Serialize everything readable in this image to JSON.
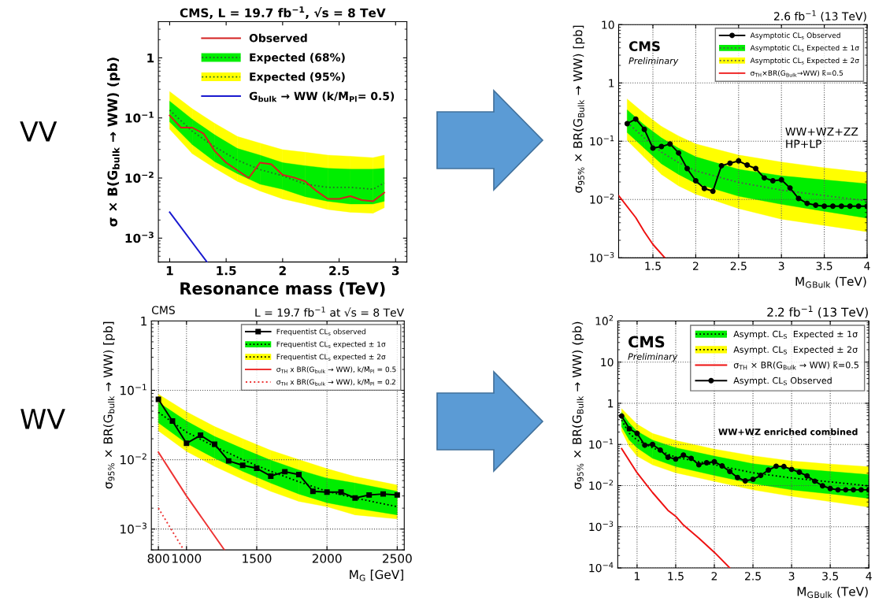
{
  "chart_data": [
    {
      "type": "line",
      "title": "CMS, L = 19.7 fb$^{−1}$, √s = 8 TeV",
      "xlabel": "Resonance mass (TeV)",
      "ylabel": "σ × B(G$_{bulk}$ → WW) (pb)",
      "log": true,
      "grid": false,
      "legend": "top right",
      "xlim": [
        0.9,
        3.1
      ],
      "ylim": [
        0.0004,
        4
      ],
      "xticks": [
        1,
        1.5,
        2,
        2.5,
        3
      ],
      "yticks": [
        {
          "value": 0.001,
          "label": "10$^{−3}$"
        },
        {
          "value": 0.01,
          "label": "10$^{−2}$"
        },
        {
          "value": 0.1,
          "label": "10$^{−1}$"
        },
        1
      ],
      "series": [
        {
          "name": "Observed",
          "color": "#d42020",
          "x": [
            1.0,
            1.1,
            1.2,
            1.3,
            1.4,
            1.5,
            1.6,
            1.7,
            1.8,
            1.9,
            2.0,
            2.1,
            2.2,
            2.3,
            2.4,
            2.5,
            2.6,
            2.7,
            2.8,
            2.9
          ],
          "values": [
            0.11,
            0.069,
            0.069,
            0.055,
            0.028,
            0.018,
            0.0134,
            0.01,
            0.018,
            0.017,
            0.0113,
            0.0102,
            0.0088,
            0.0061,
            0.0045,
            0.0045,
            0.005,
            0.0043,
            0.0041,
            0.0057
          ]
        },
        {
          "name": "Expected (68%)",
          "color": "#2a6a2a",
          "colors": [
            "#00ee00",
            "#00ee00",
            "#00ee00",
            "#00ee00",
            "#00ee00",
            "#00ee00",
            "#00ee00",
            "#00ee00",
            "#00ee00",
            "#00ee00",
            "#00ee00"
          ],
          "line_style": "dotted",
          "x": [
            1.0,
            1.2,
            1.4,
            1.6,
            1.8,
            2.0,
            2.2,
            2.4,
            2.6,
            2.8,
            2.9
          ],
          "values": [
            0.135,
            0.06,
            0.033,
            0.0198,
            0.0138,
            0.0109,
            0.0079,
            0.007,
            0.007,
            0.0065,
            0.0083
          ],
          "lower": [
            0.086,
            0.036,
            0.0187,
            0.0118,
            0.0079,
            0.0065,
            0.0049,
            0.0041,
            0.0037,
            0.0037,
            0.0041
          ],
          "upper": [
            0.19,
            0.095,
            0.052,
            0.031,
            0.024,
            0.018,
            0.016,
            0.0145,
            0.014,
            0.014,
            0.0145
          ]
        },
        {
          "name": "Expected (95%)",
          "color": "#2a6a2a",
          "colors": [
            "#ffff00",
            "#ffff00",
            "#ffff00",
            "#ffff00",
            "#ffff00",
            "#ffff00",
            "#ffff00",
            "#ffff00",
            "#ffff00",
            "#ffff00",
            "#ffff00"
          ],
          "line_style": "dotted",
          "x": [
            1.0,
            1.2,
            1.4,
            1.6,
            1.8,
            2.0,
            2.2,
            2.4,
            2.6,
            2.8,
            2.9
          ],
          "values": [
            null,
            null,
            null,
            null,
            null,
            null,
            null,
            null,
            null,
            null,
            null
          ],
          "lower": [
            0.065,
            0.0254,
            0.0146,
            0.0088,
            0.0061,
            0.0045,
            0.0037,
            0.003,
            0.0027,
            0.0026,
            0.0032
          ],
          "upper": [
            0.275,
            0.142,
            0.081,
            0.049,
            0.038,
            0.0296,
            0.0268,
            0.024,
            0.023,
            0.0218,
            0.024
          ]
        },
        {
          "name": "G$_{bulk}$ → WW (k/M̄$_{Pl}$= 0.5)",
          "color": "#1a1ad0",
          "x": [
            1.0,
            1.33
          ],
          "values": [
            0.0027,
            0.0004
          ]
        }
      ]
    },
    {
      "type": "line",
      "title": "2.6 fb$^{−1}$ (13 TeV)",
      "xlabel": "M$_{G}$$_{Bulk}$ (TeV)",
      "ylabel": "σ$_{95%}$ × BR(G$_{Bulk}$ → WW) [pb]",
      "log": true,
      "grid": true,
      "legend": "top right",
      "annotations": [
        "CMS",
        "Preliminary",
        "WW+WZ+ZZ\nHP+LP"
      ],
      "xlim": [
        1.1,
        4.0
      ],
      "ylim": [
        0.001,
        10
      ],
      "xticks": [
        1.5,
        2,
        2.5,
        3,
        3.5,
        4
      ],
      "yticks": [
        {
          "value": 0.001,
          "label": "10$^{−3}$"
        },
        {
          "value": 0.01,
          "label": "10$^{−2}$"
        },
        {
          "value": 0.1,
          "label": "10$^{−1}$"
        },
        1,
        10
      ],
      "series": [
        {
          "name": "Asymptotic CL$_{s}$ Observed",
          "color": "#000000",
          "marker": "circle",
          "x": [
            1.2,
            1.3,
            1.4,
            1.5,
            1.6,
            1.7,
            1.8,
            1.9,
            2.0,
            2.1,
            2.2,
            2.3,
            2.4,
            2.5,
            2.6,
            2.7,
            2.8,
            2.9,
            3.0,
            3.1,
            3.2,
            3.3,
            3.4,
            3.5,
            3.6,
            3.7,
            3.8,
            3.9,
            4.0
          ],
          "values": [
            0.2,
            0.24,
            0.16,
            0.076,
            0.081,
            0.09,
            0.063,
            0.034,
            0.021,
            0.0155,
            0.0139,
            0.038,
            0.042,
            0.046,
            0.039,
            0.034,
            0.0235,
            0.021,
            0.0218,
            0.0158,
            0.0104,
            0.0086,
            0.008,
            0.0077,
            0.0077,
            0.0077,
            0.0077,
            0.0077,
            0.0077
          ]
        },
        {
          "name": "Asymptotic CL$_{s}$ Expected ± 1σ",
          "color": "#555555",
          "colors": [
            "#00ee00",
            "#00ee00",
            "#00ee00",
            "#00ee00",
            "#00ee00",
            "#00ee00",
            "#00ee00",
            "#00ee00",
            "#00ee00"
          ],
          "line_style": "dotted",
          "x": [
            1.2,
            1.4,
            1.6,
            1.8,
            2.0,
            2.5,
            3.0,
            3.5,
            4.0
          ],
          "values": [
            0.21,
            0.114,
            0.065,
            0.043,
            0.031,
            0.0197,
            0.0145,
            0.0117,
            0.0095
          ],
          "lower": [
            0.141,
            0.076,
            0.041,
            0.027,
            0.019,
            0.0114,
            0.0083,
            0.0063,
            0.0048
          ],
          "upper": [
            0.346,
            0.19,
            0.114,
            0.076,
            0.054,
            0.033,
            0.0255,
            0.0218,
            0.0187
          ]
        },
        {
          "name": "Asymptotic CL$_{s}$ Expected ± 2σ",
          "color": "#555555",
          "colors": [
            "#ffff00",
            "#ffff00",
            "#ffff00",
            "#ffff00",
            "#ffff00",
            "#ffff00",
            "#ffff00",
            "#ffff00",
            "#ffff00"
          ],
          "line_style": "dotted",
          "x": [
            1.2,
            1.4,
            1.6,
            1.8,
            2.0,
            2.5,
            3.0,
            3.5,
            4.0
          ],
          "values": [
            null,
            null,
            null,
            null,
            null,
            null,
            null,
            null,
            null
          ],
          "lower": [
            0.103,
            0.053,
            0.027,
            0.0172,
            0.0124,
            0.007,
            0.0046,
            0.0036,
            0.0028
          ],
          "upper": [
            0.53,
            0.3,
            0.18,
            0.123,
            0.09,
            0.058,
            0.044,
            0.035,
            0.029
          ]
        },
        {
          "name": "σ$_{TH}$×BR(G$_{Bulk}$→WW) k̃=0.5",
          "color": "#ee1111",
          "x": [
            1.1,
            1.3,
            1.4,
            1.5,
            1.64
          ],
          "values": [
            0.0117,
            0.0049,
            0.0028,
            0.0017,
            0.001
          ]
        }
      ]
    },
    {
      "type": "line",
      "title": "L = 19.7 fb$^{−1}$ at √s = 8 TeV",
      "xlabel": "M$_{G}$ [GeV]",
      "ylabel": "σ$_{95%}$ × BR(G$_{bulk}$ → WW) [pb]",
      "log": true,
      "grid": true,
      "legend": "top right",
      "annotations": [
        "CMS"
      ],
      "xlim": [
        750,
        2550
      ],
      "ylim": [
        0.0005,
        1
      ],
      "xticks": [
        800,
        1000,
        1500,
        2000,
        2500
      ],
      "yticks": [
        {
          "value": 0.001,
          "label": "10$^{−3}$"
        },
        {
          "value": 0.01,
          "label": "10$^{−2}$"
        },
        {
          "value": 0.1,
          "label": "10$^{−1}$"
        },
        1
      ],
      "series": [
        {
          "name": "Frequentist CL$_{s}$ observed",
          "color": "#000000",
          "marker": "square",
          "x": [
            800,
            900,
            1000,
            1100,
            1200,
            1300,
            1400,
            1500,
            1600,
            1700,
            1800,
            1900,
            2000,
            2100,
            2200,
            2300,
            2400,
            2500
          ],
          "values": [
            0.074,
            0.036,
            0.0172,
            0.0225,
            0.0167,
            0.0096,
            0.0083,
            0.0075,
            0.0058,
            0.0067,
            0.0061,
            0.0035,
            0.0034,
            0.0034,
            0.0028,
            0.0031,
            0.0032,
            0.0031
          ]
        },
        {
          "name": "Frequentist CL$_{s}$ expected ± 1σ",
          "color": "#000000",
          "colors": [
            "#00ee00",
            "#00ee00",
            "#00ee00",
            "#00ee00",
            "#00ee00",
            "#00ee00",
            "#00ee00",
            "#00ee00",
            "#00ee00"
          ],
          "line_style": "dotted",
          "x": [
            800,
            1000,
            1200,
            1400,
            1600,
            1800,
            2000,
            2200,
            2500
          ],
          "values": [
            0.048,
            0.025,
            0.0155,
            0.01,
            0.0068,
            0.0048,
            0.0035,
            0.0028,
            0.0021
          ],
          "lower": [
            0.034,
            0.0172,
            0.0105,
            0.0068,
            0.0046,
            0.0032,
            0.0024,
            0.002,
            0.0016
          ],
          "upper": [
            0.067,
            0.036,
            0.0216,
            0.0144,
            0.0098,
            0.0071,
            0.0054,
            0.0046,
            0.0035
          ]
        },
        {
          "name": "Frequentist CL$_{s}$ expected ± 2σ",
          "color": "#000000",
          "colors": [
            "#ffff00",
            "#ffff00",
            "#ffff00",
            "#ffff00",
            "#ffff00",
            "#ffff00",
            "#ffff00",
            "#ffff00",
            "#ffff00"
          ],
          "line_style": "dotted",
          "x": [
            800,
            1000,
            1200,
            1400,
            1600,
            1800,
            2000,
            2200,
            2500
          ],
          "values": [
            null,
            null,
            null,
            null,
            null,
            null,
            null,
            null,
            null
          ],
          "lower": [
            0.026,
            0.0132,
            0.008,
            0.0052,
            0.0035,
            0.0025,
            0.0021,
            0.0016,
            0.0014
          ],
          "upper": [
            0.088,
            0.049,
            0.03,
            0.02,
            0.0136,
            0.01,
            0.0074,
            0.0057,
            0.0043
          ]
        },
        {
          "name": "σ$_{TH}$ x BR(G$_{bulk}$ → WW), k/M̄$_{Pl}$ = 0.5",
          "color": "#ee3333",
          "x": [
            800,
            900,
            1000,
            1270
          ],
          "values": [
            0.0128,
            0.0062,
            0.003,
            0.0005
          ]
        },
        {
          "name": "σ$_{TH}$ x BR(G$_{bulk}$ → WW), k/M̄$_{Pl}$ = 0.2",
          "color": "#ee3333",
          "line_style": "dotted",
          "x": [
            800,
            980
          ],
          "values": [
            0.002,
            0.0005
          ]
        }
      ]
    },
    {
      "type": "line",
      "title": "2.2 fb$^{−1}$ (13 TeV)",
      "xlabel": "M$_{G}$$_{Bulk}$ (TeV)",
      "ylabel": "σ$_{95%}$ × BR(G$_{Bulk}$ → WW) (pb)",
      "log": true,
      "grid": true,
      "legend": "top right",
      "annotations": [
        "CMS",
        "Preliminary",
        "WW+WZ enriched combined"
      ],
      "xlim": [
        0.75,
        4.0
      ],
      "ylim": [
        0.0001,
        100
      ],
      "xticks": [
        1,
        1.5,
        2,
        2.5,
        3,
        3.5,
        4
      ],
      "yticks": [
        {
          "value": 0.0001,
          "label": "10$^{−4}$"
        },
        {
          "value": 0.001,
          "label": "10$^{−3}$"
        },
        {
          "value": 0.01,
          "label": "10$^{−2}$"
        },
        {
          "value": 0.1,
          "label": "10$^{−1}$"
        },
        1,
        10,
        {
          "value": 100,
          "label": "10$^{2}$"
        }
      ],
      "series": [
        {
          "name": "Asympt. CL$_{S}$  Expected ± 1σ",
          "color": "#000000",
          "colors": [
            "#00ee00",
            "#00ee00",
            "#00ee00",
            "#00ee00",
            "#00ee00",
            "#00ee00",
            "#00ee00",
            "#00ee00",
            "#00ee00",
            "#00ee00"
          ],
          "line_style": "dotted",
          "x": [
            0.8,
            0.9,
            1.0,
            1.2,
            1.5,
            2.0,
            2.5,
            3.0,
            3.5,
            4.0
          ],
          "values": [
            0.39,
            0.185,
            0.128,
            0.083,
            0.049,
            0.032,
            0.0205,
            0.0153,
            0.0123,
            0.0098
          ],
          "lower": [
            0.27,
            0.128,
            0.083,
            0.046,
            0.029,
            0.0177,
            0.0112,
            0.0079,
            0.0063,
            0.0049
          ],
          "upper": [
            0.6,
            0.33,
            0.21,
            0.128,
            0.083,
            0.052,
            0.034,
            0.0264,
            0.022,
            0.0185
          ]
        },
        {
          "name": "Asympt. CL$_{S}$  Expected ± 2σ",
          "color": "#000000",
          "colors": [
            "#ffff00",
            "#ffff00",
            "#ffff00",
            "#ffff00",
            "#ffff00",
            "#ffff00",
            "#ffff00",
            "#ffff00",
            "#ffff00",
            "#ffff00"
          ],
          "line_style": "dotted",
          "x": [
            0.8,
            0.9,
            1.0,
            1.2,
            1.5,
            2.0,
            2.5,
            3.0,
            3.5,
            4.0
          ],
          "values": [
            null,
            null,
            null,
            null,
            null,
            null,
            null,
            null,
            null,
            null
          ],
          "lower": [
            0.214,
            0.089,
            0.052,
            0.032,
            0.0205,
            0.0127,
            0.0079,
            0.0055,
            0.0041,
            0.003
          ],
          "upper": [
            0.74,
            0.48,
            0.31,
            0.185,
            0.125,
            0.077,
            0.053,
            0.0397,
            0.0333,
            0.0287
          ]
        },
        {
          "name": "σ$_{TH}$ × BR(G$_{Bulk}$ → WW) k̃=0.5",
          "color": "#ee1111",
          "x": [
            0.8,
            1.0,
            1.2,
            1.4,
            1.5,
            1.6,
            1.8,
            2.0,
            2.2
          ],
          "values": [
            0.079,
            0.0205,
            0.0068,
            0.0025,
            0.0018,
            0.0011,
            0.00053,
            0.00024,
            0.0001
          ]
        },
        {
          "name": "Asympt. CL$_{S}$ Observed",
          "color": "#000000",
          "marker": "circle",
          "x": [
            0.8,
            0.9,
            1.0,
            1.1,
            1.2,
            1.3,
            1.4,
            1.5,
            1.6,
            1.7,
            1.8,
            1.9,
            2.0,
            2.1,
            2.2,
            2.3,
            2.4,
            2.5,
            2.6,
            2.7,
            2.8,
            2.9,
            3.0,
            3.1,
            3.2,
            3.3,
            3.4,
            3.5,
            3.6,
            3.7,
            3.8,
            3.9,
            4.0
          ],
          "values": [
            0.49,
            0.24,
            0.185,
            0.096,
            0.1,
            0.073,
            0.049,
            0.044,
            0.055,
            0.046,
            0.032,
            0.036,
            0.038,
            0.03,
            0.022,
            0.0157,
            0.013,
            0.0142,
            0.0177,
            0.0238,
            0.0296,
            0.029,
            0.0248,
            0.0211,
            0.0172,
            0.0128,
            0.0099,
            0.0085,
            0.0079,
            0.0079,
            0.0079,
            0.0079,
            0.0079
          ]
        }
      ]
    },
    {
      "type": "other",
      "annotations": [
        "VV",
        "WV"
      ]
    }
  ]
}
